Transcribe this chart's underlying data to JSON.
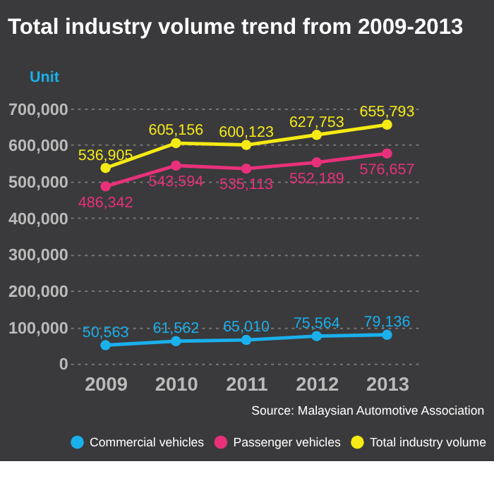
{
  "chart_data": {
    "type": "line",
    "title": "Total industry volume trend from 2009-2013",
    "ylabel": "Unit",
    "categories": [
      "2009",
      "2010",
      "2011",
      "2012",
      "2013"
    ],
    "series": [
      {
        "name": "Commercial vehicles",
        "color": "#1ab0ec",
        "values": [
          50563,
          61562,
          65010,
          75564,
          79136
        ],
        "value_labels": [
          "50,563",
          "61,562",
          "65,010",
          "75,564",
          "79,136"
        ]
      },
      {
        "name": "Passenger vehicles",
        "color": "#e8317a",
        "values": [
          486342,
          543594,
          535113,
          552189,
          576657
        ],
        "value_labels": [
          "486,342",
          "543,594",
          "535,113",
          "552,189",
          "576,657"
        ]
      },
      {
        "name": "Total industry volume",
        "color": "#f5ea14",
        "values": [
          536905,
          605156,
          600123,
          627753,
          655793
        ],
        "value_labels": [
          "536,905",
          "605,156",
          "600,123",
          "627,753",
          "655,793"
        ]
      }
    ],
    "ylim": [
      0,
      700000
    ],
    "yticks": [
      0,
      {
        "value": 100000,
        "label": "100,000"
      },
      {
        "value": 200000,
        "label": "200,000"
      },
      {
        "value": 300000,
        "label": "300,000"
      },
      {
        "value": 400000,
        "label": "400,000"
      },
      {
        "value": 500000,
        "label": "500,000"
      },
      {
        "value": 600000,
        "label": "600,000"
      },
      {
        "value": 700000,
        "label": "700,000"
      }
    ],
    "grid": "y",
    "legend": "bottom",
    "data_labels": true,
    "marker": "circle",
    "line_style": "solid",
    "annotations": [
      "Source: Malaysian Automotive Association"
    ]
  }
}
